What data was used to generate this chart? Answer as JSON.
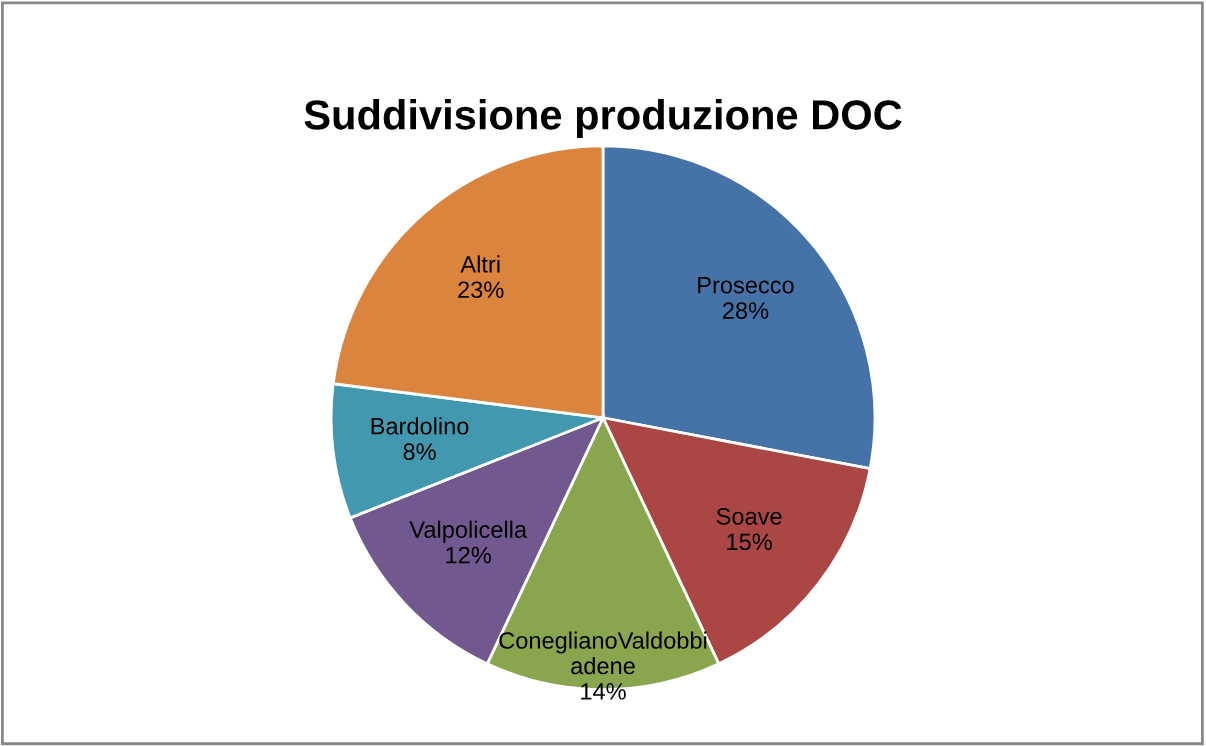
{
  "chart_data": {
    "type": "pie",
    "title": "Suddivisione produzione DOC",
    "categories": [
      "Prosecco",
      "Soave",
      "ConeglianoValdobbiadene",
      "Valpolicella",
      "Bardolino",
      "Altri"
    ],
    "values": [
      28,
      15,
      14,
      12,
      8,
      23
    ],
    "colors": [
      "#4572a7",
      "#aa4643",
      "#89a54e",
      "#71588f",
      "#4198af",
      "#db843d"
    ],
    "value_labels": [
      "28%",
      "15%",
      "14%",
      "12%",
      "8%",
      "23%"
    ],
    "legend": false
  }
}
